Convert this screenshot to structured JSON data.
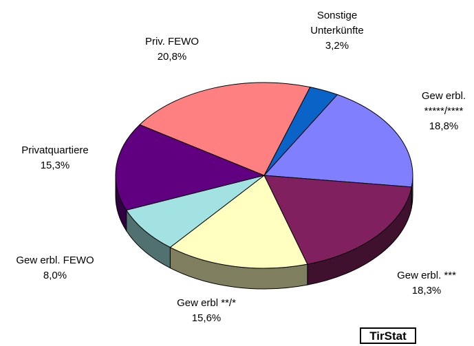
{
  "chart_data": {
    "type": "pie",
    "categories": [
      "Sonstige Unterkünfte",
      "Gew erbl. *****/****",
      "Gew erbl. ***",
      "Gew erbl **/*",
      "Gew erbl. FEWO",
      "Privatquartiere",
      "Priv. FEWO"
    ],
    "values": [
      3.2,
      18.8,
      18.3,
      15.6,
      8.0,
      15.3,
      20.8
    ],
    "value_labels": [
      "3,2%",
      "18,8%",
      "18,3%",
      "15,6%",
      "8,0%",
      "15,3%",
      "20,8%"
    ],
    "colors": [
      "#0a64c8",
      "#8080ff",
      "#80205f",
      "#ffffc0",
      "#a2e2e2",
      "#600080",
      "#ff8080"
    ],
    "source": "TirStat"
  }
}
